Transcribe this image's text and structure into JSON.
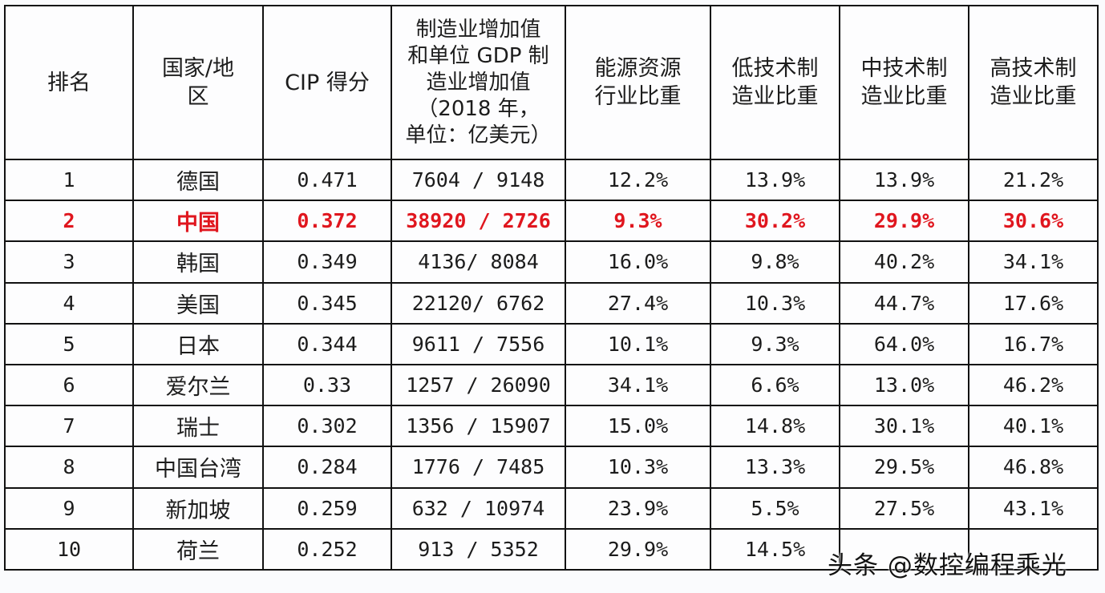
{
  "table": {
    "headers": [
      {
        "lines": [
          "排名"
        ]
      },
      {
        "lines": [
          "国家/地",
          "区"
        ]
      },
      {
        "lines": [
          "CIP 得分"
        ]
      },
      {
        "lines": [
          "制造业增加值",
          "和单位 GDP 制",
          "造业增加值",
          "（2018 年，",
          "单位：亿美元）"
        ]
      },
      {
        "lines": [
          "能源资源",
          "行业比重"
        ]
      },
      {
        "lines": [
          "低技术制",
          "造业比重"
        ]
      },
      {
        "lines": [
          "中技术制",
          "造业比重"
        ]
      },
      {
        "lines": [
          "高技术制",
          "造业比重"
        ]
      }
    ],
    "rows": [
      {
        "rank": "1",
        "country": "德国",
        "cip": "0.471",
        "mva": "7604 / 9148",
        "energy": "12.2%",
        "low_tech": "13.9%",
        "mid_tech": "13.9%",
        "high_tech": "21.2%",
        "highlight": false
      },
      {
        "rank": "2",
        "country": "中国",
        "cip": "0.372",
        "mva": "38920 / 2726",
        "energy": "9.3%",
        "low_tech": "30.2%",
        "mid_tech": "29.9%",
        "high_tech": "30.6%",
        "highlight": true
      },
      {
        "rank": "3",
        "country": "韩国",
        "cip": "0.349",
        "mva": "4136/ 8084",
        "energy": "16.0%",
        "low_tech": "9.8%",
        "mid_tech": "40.2%",
        "high_tech": "34.1%",
        "highlight": false
      },
      {
        "rank": "4",
        "country": "美国",
        "cip": "0.345",
        "mva": "22120/ 6762",
        "energy": "27.4%",
        "low_tech": "10.3%",
        "mid_tech": "44.7%",
        "high_tech": "17.6%",
        "highlight": false
      },
      {
        "rank": "5",
        "country": "日本",
        "cip": "0.344",
        "mva": "9611 / 7556",
        "energy": "10.1%",
        "low_tech": "9.3%",
        "mid_tech": "64.0%",
        "high_tech": "16.7%",
        "highlight": false
      },
      {
        "rank": "6",
        "country": "爱尔兰",
        "cip": "0.33",
        "mva": "1257 / 26090",
        "energy": "34.1%",
        "low_tech": "6.6%",
        "mid_tech": "13.0%",
        "high_tech": "46.2%",
        "highlight": false
      },
      {
        "rank": "7",
        "country": "瑞士",
        "cip": "0.302",
        "mva": "1356 / 15907",
        "energy": "15.0%",
        "low_tech": "14.8%",
        "mid_tech": "30.1%",
        "high_tech": "40.1%",
        "highlight": false
      },
      {
        "rank": "8",
        "country": "中国台湾",
        "cip": "0.284",
        "mva": "1776 / 7485",
        "energy": "10.3%",
        "low_tech": "13.3%",
        "mid_tech": "29.5%",
        "high_tech": "46.8%",
        "highlight": false
      },
      {
        "rank": "9",
        "country": "新加坡",
        "cip": "0.259",
        "mva": "632 / 10974",
        "energy": "23.9%",
        "low_tech": "5.5%",
        "mid_tech": "27.5%",
        "high_tech": "43.1%",
        "highlight": false
      },
      {
        "rank": "10",
        "country": "荷兰",
        "cip": "0.252",
        "mva": "913 / 5352",
        "energy": "29.9%",
        "low_tech": "14.5%",
        "mid_tech": "",
        "high_tech": "",
        "highlight": false
      }
    ]
  },
  "watermark": "头条 @数控编程乘光",
  "colors": {
    "highlight": "#e0161e",
    "border": "#111111",
    "text": "#1c1c1c",
    "background": "#fdfdfe"
  }
}
